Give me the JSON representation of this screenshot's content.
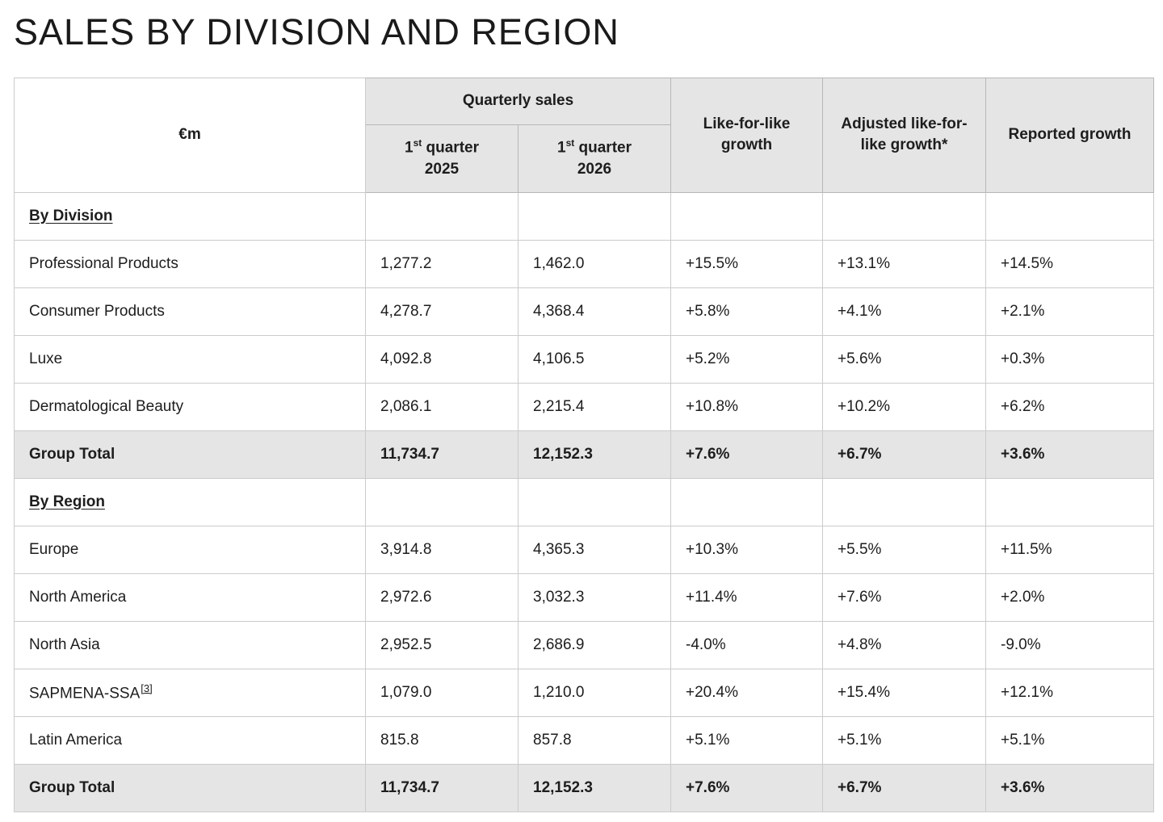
{
  "chart_data": {
    "type": "table",
    "title": "SALES BY DIVISION AND REGION",
    "unit_label": "€m",
    "column_group_label": "Quarterly sales",
    "columns": {
      "q1_2025": {
        "num": "1",
        "ordinal": "st",
        "text": "quarter",
        "year": "2025"
      },
      "q1_2026": {
        "num": "1",
        "ordinal": "st",
        "text": "quarter",
        "year": "2026"
      },
      "lfl": "Like-for-like growth",
      "adj_lfl": "Adjusted like-for-like growth*",
      "reported": "Reported growth"
    },
    "rows": [
      {
        "type": "section",
        "label": "By Division"
      },
      {
        "type": "data",
        "label": "Professional Products",
        "q1_2025": "1,277.2",
        "q1_2026": "1,462.0",
        "lfl": "+15.5%",
        "adj_lfl": "+13.1%",
        "reported": "+14.5%"
      },
      {
        "type": "data",
        "label": "Consumer Products",
        "q1_2025": "4,278.7",
        "q1_2026": "4,368.4",
        "lfl": "+5.8%",
        "adj_lfl": "+4.1%",
        "reported": "+2.1%"
      },
      {
        "type": "data",
        "label": "Luxe",
        "q1_2025": "4,092.8",
        "q1_2026": "4,106.5",
        "lfl": "+5.2%",
        "adj_lfl": "+5.6%",
        "reported": "+0.3%"
      },
      {
        "type": "data",
        "label": "Dermatological Beauty",
        "q1_2025": "2,086.1",
        "q1_2026": "2,215.4",
        "lfl": "+10.8%",
        "adj_lfl": "+10.2%",
        "reported": "+6.2%"
      },
      {
        "type": "total",
        "label": "Group Total",
        "q1_2025": "11,734.7",
        "q1_2026": "12,152.3",
        "lfl": "+7.6%",
        "adj_lfl": "+6.7%",
        "reported": "+3.6%"
      },
      {
        "type": "section",
        "label": "By Region"
      },
      {
        "type": "data",
        "label": "Europe",
        "q1_2025": "3,914.8",
        "q1_2026": "4,365.3",
        "lfl": "+10.3%",
        "adj_lfl": "+5.5%",
        "reported": "+11.5%"
      },
      {
        "type": "data",
        "label": "North America",
        "q1_2025": "2,972.6",
        "q1_2026": "3,032.3",
        "lfl": "+11.4%",
        "adj_lfl": "+7.6%",
        "reported": "+2.0%"
      },
      {
        "type": "data",
        "label": "North Asia",
        "q1_2025": "2,952.5",
        "q1_2026": "2,686.9",
        "lfl": "-4.0%",
        "adj_lfl": "+4.8%",
        "reported": "-9.0%"
      },
      {
        "type": "data",
        "label": "SAPMENA-SSA",
        "footnote": "[3]",
        "q1_2025": "1,079.0",
        "q1_2026": "1,210.0",
        "lfl": "+20.4%",
        "adj_lfl": "+15.4%",
        "reported": "+12.1%"
      },
      {
        "type": "data",
        "label": "Latin America",
        "q1_2025": "815.8",
        "q1_2026": "857.8",
        "lfl": "+5.1%",
        "adj_lfl": "+5.1%",
        "reported": "+5.1%"
      },
      {
        "type": "total",
        "label": "Group Total",
        "q1_2025": "11,734.7",
        "q1_2026": "12,152.3",
        "lfl": "+7.6%",
        "adj_lfl": "+6.7%",
        "reported": "+3.6%"
      }
    ]
  },
  "colors": {
    "header_background": "#e5e5e5",
    "total_row_background": "#e5e5e5",
    "body_border": "#cbcbcb",
    "header_border": "#b7b7b7",
    "text": "#1d1d1d"
  }
}
